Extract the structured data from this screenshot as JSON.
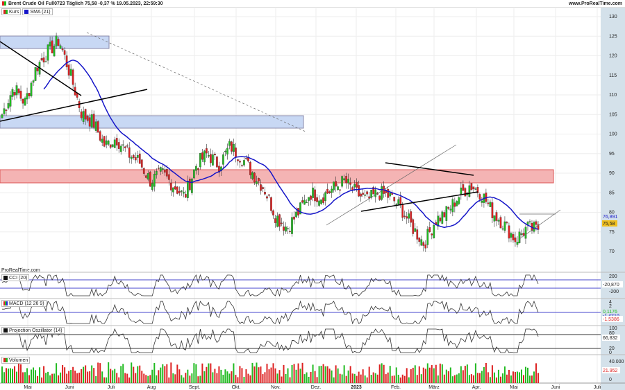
{
  "header": {
    "title": "Brent Crude Oil Full0723 Täglich 75,58 -0,37 % 19.05.2023, 22:59:30",
    "site": "www.ProRealTime.com"
  },
  "legend": {
    "kurs": "Kurs",
    "sma": "SMA (21)"
  },
  "watermark": "ProRealTime.com",
  "panels": {
    "cci": "CCI (20)",
    "macd": "MACD (12 26 9)",
    "proj": "Projection Oszillator (14)",
    "vol": "Volumen"
  },
  "price_axis": {
    "ticks": [
      "130",
      "125",
      "120",
      "115",
      "110",
      "105",
      "100",
      "95",
      "90",
      "85",
      "80",
      "75",
      "70"
    ],
    "sma_value": "76,891",
    "last_price": "75,58"
  },
  "cci_axis": {
    "ticks": [
      "200",
      "-200"
    ],
    "value": "-20,870"
  },
  "macd_axis": {
    "ticks": [
      "4",
      "2"
    ],
    "value1": "0,1176",
    "value2": "-1,4210",
    "value3": "-1,5386"
  },
  "proj_axis": {
    "ticks": [
      "100",
      "80",
      "20",
      "0"
    ],
    "value": "66,832"
  },
  "vol_axis": {
    "ticks": [
      "40.000",
      "0"
    ],
    "value": "21.952"
  },
  "time_axis": [
    "Mai",
    "Juni",
    "Juli",
    "Aug",
    "Sept.",
    "Okt.",
    "Nov.",
    "Dez.",
    "2023",
    "Feb.",
    "März",
    "Apr.",
    "Mai",
    "Juni",
    "Juli"
  ],
  "colors": {
    "up": "#22bb22",
    "down": "#dd2222",
    "sma": "#1515c8",
    "support": "#f4b4b4",
    "resistance": "#c8d8f4"
  },
  "chart_data": {
    "type": "candlestick",
    "keyframes": [
      105,
      112,
      108,
      117,
      121,
      124,
      115,
      105,
      103,
      97,
      99,
      95,
      93,
      88,
      90,
      87,
      84,
      92,
      95,
      92,
      97,
      94,
      90,
      86,
      79,
      76,
      80,
      85,
      84,
      86,
      88,
      85,
      83,
      85,
      84,
      81,
      76,
      72,
      78,
      80,
      84,
      87,
      85,
      80,
      77,
      73,
      76,
      75.58
    ]
  }
}
